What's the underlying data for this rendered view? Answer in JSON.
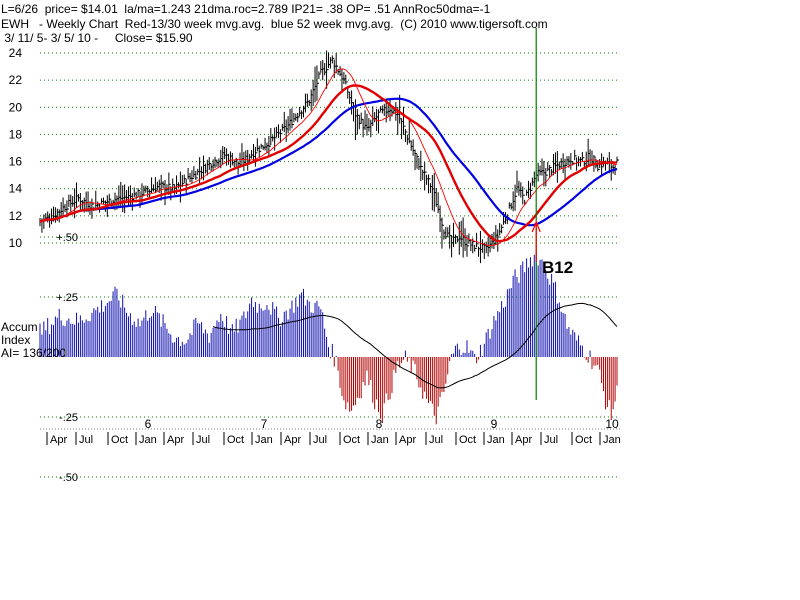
{
  "header": {
    "line1": "L=6/26  price= $14.01  la/ma=1.243 21dma.roc=2.789 IP21= .38 OP= .51 AnnRoc50dma=-1",
    "line2": "EWH   - Weekly Chart  Red-13/30 week mvg.avg.  blue 52 week mvg.avg.  (C) 2010 www.tigersoft.com",
    "line3": " 3/ 11/ 5- 3/ 5/ 10 -     Close= $15.90"
  },
  "indicator_label": [
    "Accum",
    "Index",
    "AI= 136/200"
  ],
  "signal_label": "B12",
  "colors": {
    "price_bars": "#000000",
    "ma13": "#ff0000",
    "ma30": "#e00000",
    "ma52": "#0000e0",
    "ai_positive": "#1010b0",
    "ai_negative": "#b00000",
    "signal_line": "#008000",
    "arrow": "#ff0000",
    "grid": "#008000"
  },
  "x_axis": {
    "year_labels": [
      "6",
      "7",
      "8",
      "9",
      "10"
    ],
    "month_labels": [
      "Apr",
      "Jul",
      "Oct",
      "Jan",
      "Apr",
      "Jul",
      "Oct",
      "Jan",
      "Apr",
      "Jul",
      "Oct",
      "Jan",
      "Apr",
      "Jul",
      "Oct",
      "Jan",
      "Apr",
      "Jul",
      "Oct",
      "Jan"
    ]
  },
  "chart_data": [
    {
      "type": "line",
      "subtype": "ohlc-weekly",
      "title": "EWH - Weekly Chart",
      "y_ticks": [
        10,
        12,
        14,
        16,
        18,
        20,
        22,
        24
      ],
      "ylim": [
        8,
        25
      ],
      "grid": "dotted-horizontal",
      "series": [
        {
          "name": "price",
          "anchors": [
            [
              0,
              11.6
            ],
            [
              6,
              11.9
            ],
            [
              12,
              12.6
            ],
            [
              20,
              13.3
            ],
            [
              28,
              12.7
            ],
            [
              38,
              13.2
            ],
            [
              46,
              13.4
            ],
            [
              54,
              13.7
            ],
            [
              62,
              14.2
            ],
            [
              70,
              14.0
            ],
            [
              80,
              15.0
            ],
            [
              90,
              16.0
            ],
            [
              96,
              16.5
            ],
            [
              104,
              15.8
            ],
            [
              112,
              16.8
            ],
            [
              120,
              17.5
            ],
            [
              128,
              18.5
            ],
            [
              134,
              19.5
            ],
            [
              140,
              20.5
            ],
            [
              146,
              22.5
            ],
            [
              152,
              23.5
            ],
            [
              158,
              22.0
            ],
            [
              164,
              19.5
            ],
            [
              170,
              18.3
            ],
            [
              176,
              19.5
            ],
            [
              182,
              19.9
            ],
            [
              186,
              19.5
            ],
            [
              192,
              17.5
            ],
            [
              198,
              15.5
            ],
            [
              204,
              14.0
            ],
            [
              210,
              11.0
            ],
            [
              214,
              10.0
            ],
            [
              218,
              10.5
            ],
            [
              222,
              10.0
            ],
            [
              226,
              9.8
            ],
            [
              232,
              9.5
            ],
            [
              238,
              10.5
            ],
            [
              244,
              12.5
            ],
            [
              248,
              14.0
            ],
            [
              252,
              13.2
            ],
            [
              258,
              15.0
            ],
            [
              264,
              15.3
            ],
            [
              270,
              15.8
            ],
            [
              276,
              16.2
            ],
            [
              282,
              16.0
            ],
            [
              286,
              16.4
            ],
            [
              290,
              15.7
            ],
            [
              294,
              15.9
            ],
            [
              298,
              15.6
            ],
            [
              300,
              15.9
            ]
          ]
        },
        {
          "name": "13 week mvg.avg."
        },
        {
          "name": "30 week mvg.avg."
        },
        {
          "name": "52 week mvg.avg."
        }
      ],
      "x_domain_weeks": [
        0,
        300
      ],
      "signal": {
        "label": "B12",
        "week": 258
      }
    },
    {
      "type": "bar",
      "title": "Accum Index",
      "y_ticks": [
        0.5,
        0.25,
        -0.25,
        -0.5
      ],
      "y_tick_labels": [
        "+.50",
        "+.25",
        "-.25",
        "-.50"
      ],
      "ylim": [
        -0.55,
        0.55
      ],
      "anchors": [
        [
          0,
          0.1
        ],
        [
          10,
          0.17
        ],
        [
          20,
          0.15
        ],
        [
          30,
          0.2
        ],
        [
          40,
          0.26
        ],
        [
          46,
          0.18
        ],
        [
          52,
          0.14
        ],
        [
          58,
          0.2
        ],
        [
          64,
          0.14
        ],
        [
          70,
          0.08
        ],
        [
          76,
          0.07
        ],
        [
          82,
          0.14
        ],
        [
          88,
          0.09
        ],
        [
          94,
          0.18
        ],
        [
          100,
          0.1
        ],
        [
          106,
          0.16
        ],
        [
          110,
          0.24
        ],
        [
          114,
          0.21
        ],
        [
          118,
          0.23
        ],
        [
          124,
          0.16
        ],
        [
          130,
          0.2
        ],
        [
          136,
          0.26
        ],
        [
          140,
          0.22
        ],
        [
          146,
          0.2
        ],
        [
          150,
          0.05
        ],
        [
          154,
          -0.02
        ],
        [
          158,
          -0.18
        ],
        [
          162,
          -0.22
        ],
        [
          166,
          -0.15
        ],
        [
          170,
          -0.08
        ],
        [
          174,
          -0.18
        ],
        [
          178,
          -0.24
        ],
        [
          182,
          -0.14
        ],
        [
          186,
          -0.04
        ],
        [
          190,
          -0.01
        ],
        [
          194,
          -0.05
        ],
        [
          198,
          -0.12
        ],
        [
          202,
          -0.2
        ],
        [
          206,
          -0.25
        ],
        [
          210,
          -0.15
        ],
        [
          214,
          0.0
        ],
        [
          218,
          0.05
        ],
        [
          222,
          0.04
        ],
        [
          226,
          -0.01
        ],
        [
          230,
          0.04
        ],
        [
          236,
          0.15
        ],
        [
          242,
          0.24
        ],
        [
          246,
          0.32
        ],
        [
          250,
          0.35
        ],
        [
          254,
          0.4
        ],
        [
          258,
          0.43
        ],
        [
          262,
          0.38
        ],
        [
          266,
          0.32
        ],
        [
          270,
          0.24
        ],
        [
          274,
          0.13
        ],
        [
          278,
          0.08
        ],
        [
          282,
          0.04
        ],
        [
          286,
          0.0
        ],
        [
          290,
          -0.05
        ],
        [
          294,
          -0.18
        ],
        [
          297,
          -0.24
        ],
        [
          300,
          -0.15
        ]
      ],
      "series": [
        {
          "name": "AI= 136/200"
        }
      ],
      "x_domain_weeks": [
        0,
        300
      ]
    }
  ]
}
